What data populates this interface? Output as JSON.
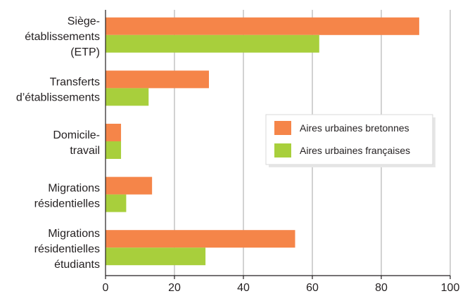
{
  "chart_data": {
    "type": "bar",
    "orientation": "horizontal",
    "categories": [
      [
        "Siège-",
        "établissements",
        "(ETP)"
      ],
      [
        "Transferts",
        "d’établissements"
      ],
      [
        "Domicile-",
        "travail"
      ],
      [
        "Migrations",
        "résidentielles"
      ],
      [
        "Migrations",
        "résidentielles",
        "étudiants"
      ]
    ],
    "series": [
      {
        "name": "Aires urbaines bretonnes",
        "color": "#f58549",
        "values": [
          91,
          30,
          4.5,
          13.5,
          55
        ]
      },
      {
        "name": "Aires urbaines françaises",
        "color": "#a8cf3c",
        "values": [
          62,
          12.5,
          4.5,
          6,
          29
        ]
      }
    ],
    "xlim": [
      0,
      100
    ],
    "xticks": [
      0,
      20,
      40,
      60,
      80,
      100
    ],
    "grid": "vertical",
    "legend_position": "right",
    "title": "",
    "xlabel": "",
    "ylabel": ""
  }
}
